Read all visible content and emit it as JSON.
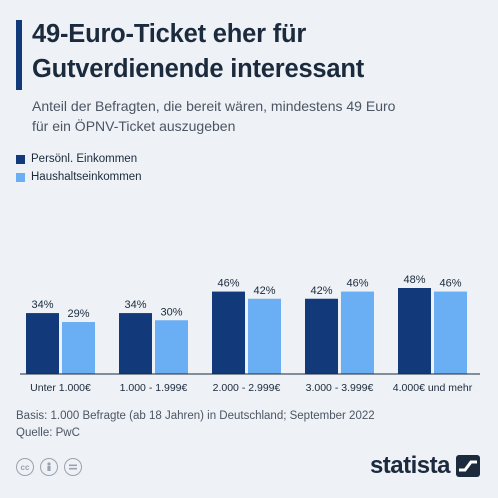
{
  "header": {
    "title_line1": "49-Euro-Ticket eher für",
    "title_line2": "Gutverdienende interessant",
    "subtitle_line1": "Anteil der Befragten, die bereit wären, mindestens 49 Euro",
    "subtitle_line2": "für ein ÖPNV-Ticket auszugeben"
  },
  "legend": [
    {
      "label": "Persönl. Einkommen",
      "color": "#12397a"
    },
    {
      "label": "Haushaltseinkommen",
      "color": "#6aaef3"
    }
  ],
  "chart_data": {
    "type": "bar",
    "title": "49-Euro-Ticket eher für Gutverdienende interessant",
    "subtitle": "Anteil der Befragten, die bereit wären, mindestens 49 Euro für ein ÖPNV-Ticket auszugeben",
    "categories": [
      "Unter 1.000€",
      "1.000 - 1.999€",
      "2.000 - 2.999€",
      "3.000 - 3.999€",
      "4.000€ und mehr"
    ],
    "series": [
      {
        "name": "Persönl. Einkommen",
        "values": [
          34,
          34,
          46,
          42,
          48
        ],
        "color": "#12397a"
      },
      {
        "name": "Haushaltseinkommen",
        "values": [
          29,
          30,
          42,
          46,
          46
        ],
        "color": "#6aaef3"
      }
    ],
    "value_suffix": "%",
    "ylim": [
      0,
      48
    ],
    "grid": false,
    "legend_position": "top-left"
  },
  "footer": {
    "basis": "Basis: 1.000 Befragte (ab 18 Jahren) in Deutschland; September 2022",
    "source": "Quelle: PwC"
  },
  "brand": {
    "name": "statista"
  },
  "license_icons": [
    "cc-icon",
    "person-icon",
    "equals-icon"
  ]
}
